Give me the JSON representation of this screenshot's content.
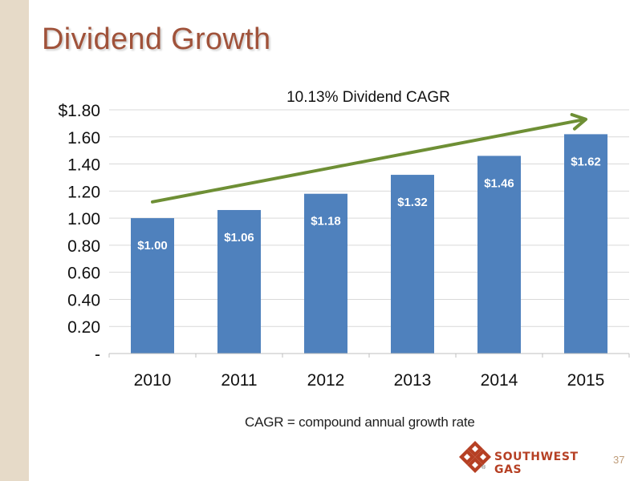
{
  "slide": {
    "title": "Dividend Growth",
    "footnote": "CAGR = compound annual growth rate",
    "page_number": "37",
    "logo_text": "SOUTHWEST GAS",
    "logo_mark": "®"
  },
  "colors": {
    "title": "#a0523a",
    "bar": "#4f81bd",
    "trend_arrow": "#6e8f35",
    "side_band": "#e6dac8",
    "logo": "#b64024"
  },
  "chart_data": {
    "type": "bar",
    "title": "10.13% Dividend CAGR",
    "categories": [
      "2010",
      "2011",
      "2012",
      "2013",
      "2014",
      "2015"
    ],
    "values": [
      1.0,
      1.06,
      1.18,
      1.32,
      1.46,
      1.62
    ],
    "data_labels": [
      "$1.00",
      "$1.06",
      "$1.18",
      "$1.32",
      "$1.46",
      "$1.62"
    ],
    "ylim": [
      0,
      1.8
    ],
    "y_ticks": [
      "-",
      "0.20",
      "0.40",
      "0.60",
      "0.80",
      "1.00",
      "1.20",
      "1.40",
      "1.60",
      "$1.80"
    ],
    "y_tick_values": [
      0,
      0.2,
      0.4,
      0.6,
      0.8,
      1.0,
      1.2,
      1.4,
      1.6,
      1.8
    ],
    "grid": true,
    "legend": false,
    "trend_arrow": {
      "from_value": 1.12,
      "to_value": 1.73,
      "direction": "up"
    }
  }
}
